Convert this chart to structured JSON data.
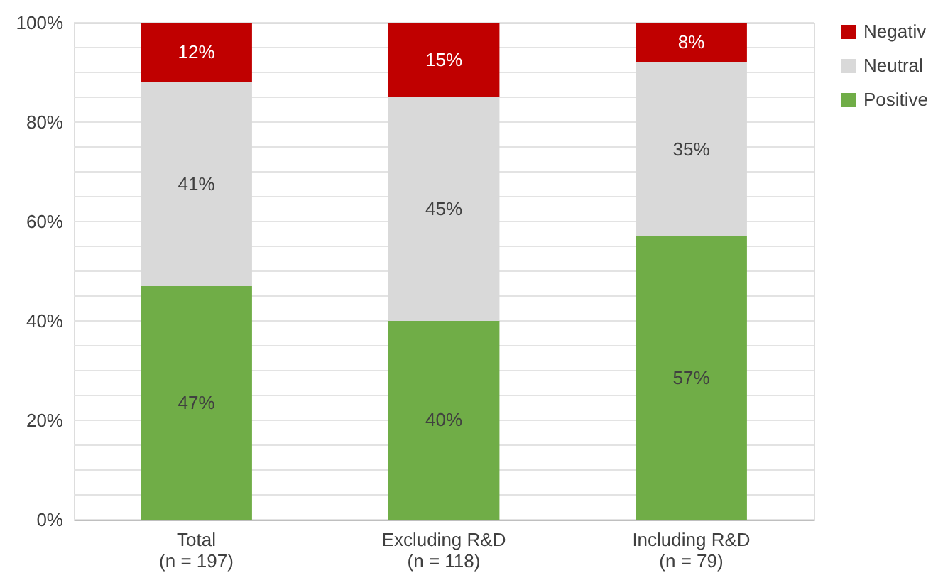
{
  "chart_data": {
    "type": "bar",
    "stacked": true,
    "categories": [
      "Total\n(n = 197)",
      "Excluding R&D\n(n = 118)",
      "Including R&D\n(n = 79)"
    ],
    "series": [
      {
        "name": "Positive",
        "color": "#70ad47",
        "values": [
          47,
          40,
          57
        ],
        "value_labels": [
          "47%",
          "40%",
          "57%"
        ]
      },
      {
        "name": "Neutral",
        "color": "#d9d9d9",
        "values": [
          41,
          45,
          35
        ],
        "value_labels": [
          "41%",
          "45%",
          "35%"
        ]
      },
      {
        "name": "Negativ",
        "color": "#c00000",
        "values": [
          12,
          15,
          8
        ],
        "value_labels": [
          "12%",
          "15%",
          "8%"
        ]
      }
    ],
    "ylim": [
      0,
      100
    ],
    "yticks": [
      {
        "value": 0,
        "label": "0%"
      },
      {
        "value": 5,
        "label": null
      },
      {
        "value": 10,
        "label": null
      },
      {
        "value": 15,
        "label": null
      },
      {
        "value": 20,
        "label": "20%"
      },
      {
        "value": 25,
        "label": null
      },
      {
        "value": 30,
        "label": null
      },
      {
        "value": 35,
        "label": null
      },
      {
        "value": 40,
        "label": "40%"
      },
      {
        "value": 45,
        "label": null
      },
      {
        "value": 50,
        "label": null
      },
      {
        "value": 55,
        "label": null
      },
      {
        "value": 60,
        "label": "60%"
      },
      {
        "value": 65,
        "label": null
      },
      {
        "value": 70,
        "label": null
      },
      {
        "value": 75,
        "label": null
      },
      {
        "value": 80,
        "label": "80%"
      },
      {
        "value": 85,
        "label": null
      },
      {
        "value": 90,
        "label": null
      },
      {
        "value": 95,
        "label": null
      },
      {
        "value": 100,
        "label": "100%"
      }
    ],
    "grid": "y",
    "legend": "right"
  }
}
